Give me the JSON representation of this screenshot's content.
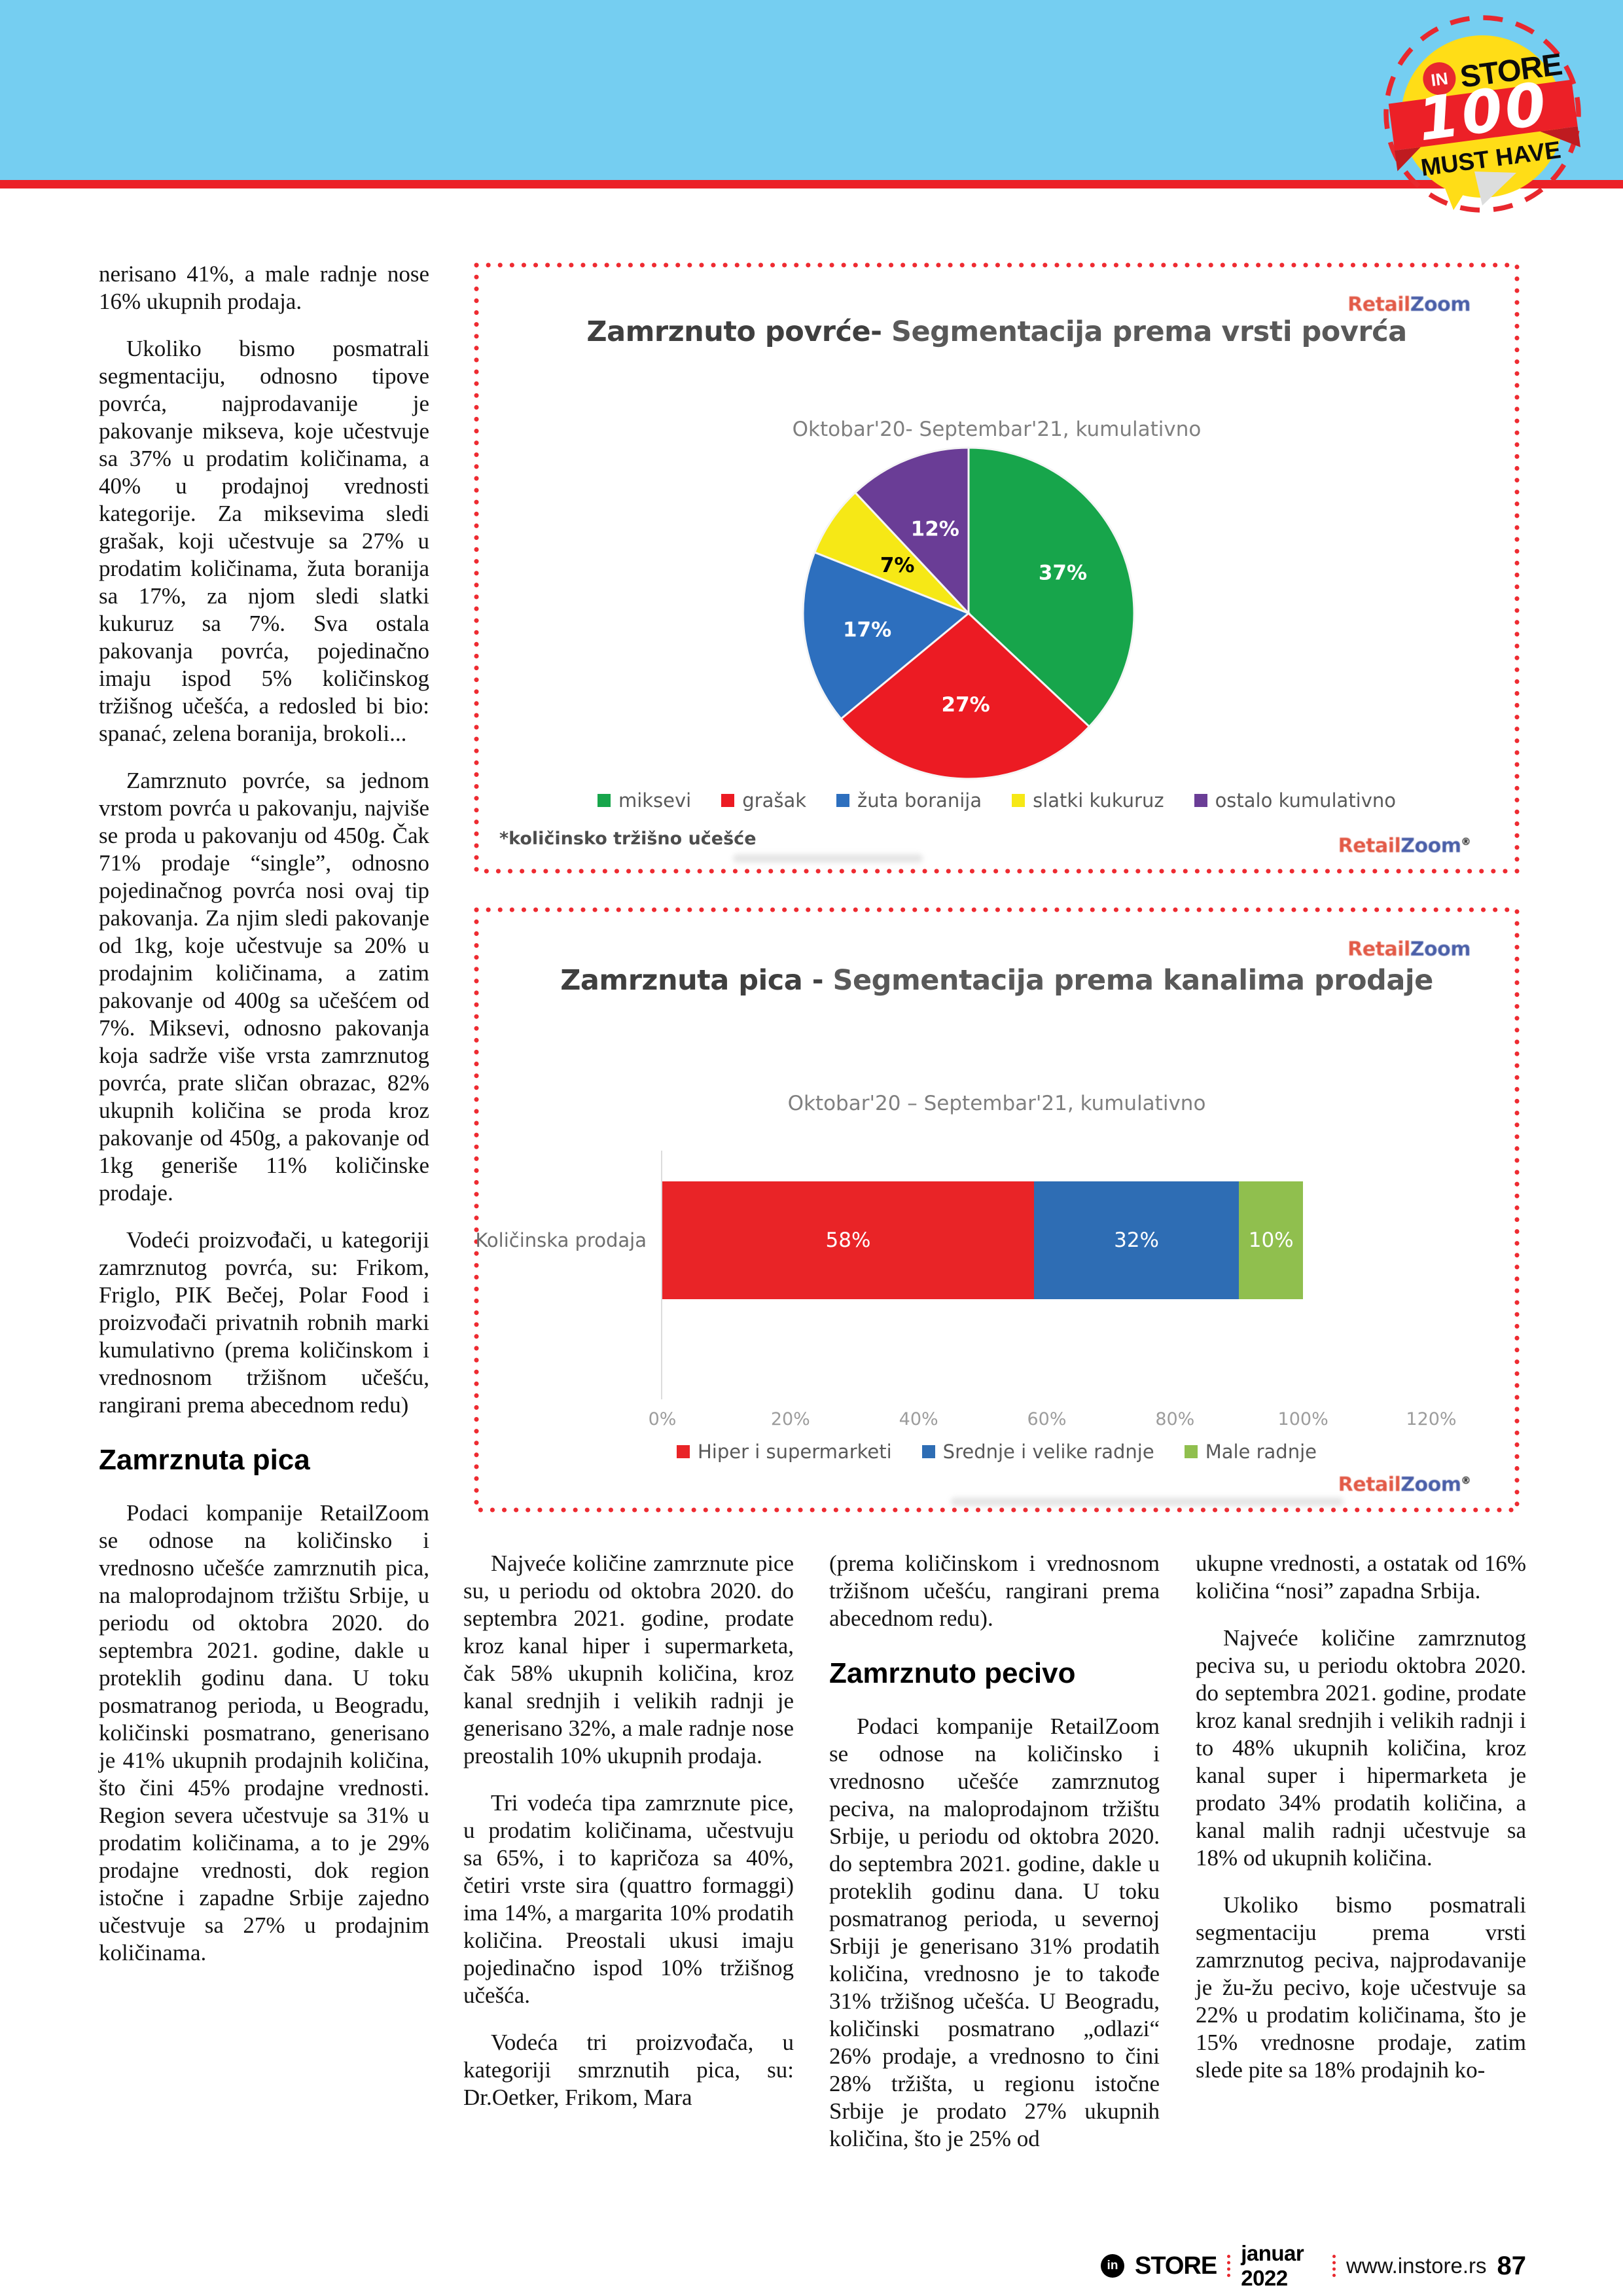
{
  "badge": {
    "in": "IN",
    "top": "STORE",
    "number": "100",
    "bottom": "MUST HAVE",
    "yellow": "#FFDD17",
    "red": "#EC2027",
    "dark_red": "#BF1B20"
  },
  "footer": {
    "logo_in": "in",
    "brand": "STORE",
    "date": "januar 2022",
    "url": "www.instore.rs",
    "page": "87"
  },
  "logo": {
    "red": "Retail",
    "blue": "Zoom",
    "reg": "®"
  },
  "article": {
    "columns": [
      {
        "blocks": [
          {
            "t": "p",
            "ind": false,
            "text": "nerisano 41%, a male radnje nose 16% ukupnih prodaja."
          },
          {
            "t": "p",
            "ind": true,
            "text": "Ukoliko bismo posmatrali segmentaciju, odnosno tipove povrća, najprodavanije je pakovanje mikseva, koje učestvuje sa 37% u prodatim količinama, a 40% u prodajnoj vrednosti kategorije. Za miksevima sledi grašak, koji učestvuje sa 27% u prodatim količinama, žuta boranija sa 17%, za njom sledi slatki kukuruz sa 7%. Sva ostala pakovanja povrća, pojedinačno imaju ispod 5% količinskog tržišnog učešća, a redosled bi bio: spanać, zelena boranija, brokoli..."
          },
          {
            "t": "p",
            "ind": true,
            "text": "Zamrznuto povrće, sa jednom vrstom povrća u pakovanju, najviše se proda u pakovanju od 450g. Čak 71% prodaje “single”, odnosno pojedinačnog povrća nosi ovaj tip pakovanja. Za njim sledi pakovanje od 1kg, koje učestvuje sa 20% u prodajnim količinama, a zatim pakovanje od 400g sa učešćem od 7%. Miksevi, odnosno pakovanja koja sadrže više vrsta zamrznutog povrća, prate sličan obrazac, 82% ukupnih količina se proda kroz pakovanje od 450g, a pakovanje od 1kg generiše 11% količinske prodaje."
          },
          {
            "t": "p",
            "ind": true,
            "text": "Vodeći proizvođači, u kategoriji zamrznutog povrća, su: Frikom, Friglo, PIK Bečej, Polar Food i proizvođači privatnih robnih marki kumulativno (prema količinskom i vrednosnom tržišnom učešću, rangirani prema abecednom redu)"
          },
          {
            "t": "h",
            "text": "Zamrznuta pica"
          },
          {
            "t": "p",
            "ind": true,
            "text": "Podaci kompanije RetailZoom se odnose na količinsko i vrednosno učešće zamrznutih pica, na maloprodajnom tržištu Srbije, u periodu od oktobra 2020. do septembra 2021. godine, dakle u proteklih godinu dana. U toku posmatranog perioda, u Beogradu, količinski posmatrano, generisano je 41% ukupnih prodajnih količina, što čini 45% prodajne vrednosti. Region severa učestvuje sa 31% u prodatim količinama, a to je 29% prodajne vrednosti, dok region istočne i zapadne Srbije zajedno učestvuje sa 27% u prodajnim količinama."
          }
        ]
      },
      {
        "blocks": [
          {
            "t": "p",
            "ind": true,
            "text": "Najveće količine zamrznute pice su, u periodu od oktobra 2020. do septembra 2021. godine, prodate kroz kanal hiper i supermarketa, čak 58% ukupnih količina, kroz kanal srednjih i velikih radnji je generisano 32%, a male radnje nose preostalih 10% ukupnih prodaja."
          },
          {
            "t": "p",
            "ind": true,
            "text": "Tri vodeća tipa zamrznute pice, u prodatim količinama, učestvuju sa 65%, i to kapričoza sa 40%, četiri vrste sira (quattro formaggi) ima 14%, a margarita 10% prodatih količina. Preostali ukusi imaju pojedinačno ispod 10% tržišnog učešća."
          },
          {
            "t": "p",
            "ind": true,
            "text": "Vodeća tri proizvođača, u kategoriji smrznutih pica, su: Dr.Oetker, Frikom, Mara"
          }
        ]
      },
      {
        "blocks": [
          {
            "t": "p",
            "ind": false,
            "text": "(prema količinskom i vrednosnom tržišnom učešću, rangirani prema abecednom redu)."
          },
          {
            "t": "h",
            "text": "Zamrznuto pecivo"
          },
          {
            "t": "p",
            "ind": true,
            "text": "Podaci kompanije RetailZoom se odnose na količinsko i vrednosno učešće zamrznutog peciva, na maloprodajnom tržištu Srbije, u periodu od oktobra 2020. do septembra 2021. godine, dakle u proteklih godinu dana. U toku posmatranog perioda, u severnoj Srbiji je generisano 31% prodatih količina, vrednosno je to takođe 31% tržišnog učešća.  U Beogradu, količinski posmatrano „odlazi“ 26% prodaje, a vrednosno to čini 28% tržišta, u regionu istočne Srbije je prodato 27% ukupnih količina, što je 25% od"
          }
        ]
      },
      {
        "blocks": [
          {
            "t": "p",
            "ind": false,
            "text": "ukupne vrednosti, a ostatak od 16% količina “nosi” zapadna Srbija."
          },
          {
            "t": "p",
            "ind": true,
            "text": "Najveće količine zamrznutog peciva su, u periodu oktobra 2020. do septembra 2021. godine, prodate kroz kanal srednjih i velikih radnji i to 48% ukupnih količina, kroz kanal super i hipermarketa je prodato 34% prodatih količina, a kanal malih radnji učestvuje sa 18% od ukupnih količina."
          },
          {
            "t": "p",
            "ind": true,
            "text": "Ukoliko bismo posmatrali segmentaciju prema vrsti zamrznutog peciva, najprodavanije je žu-žu pecivo, koje učestvuje sa 22% u prodatim količinama, što je 15% vrednosne prodaje, zatim slede pite sa 18% prodajnih ko-"
          }
        ]
      }
    ]
  },
  "chart_data": [
    {
      "type": "pie",
      "title_dark": "Zamrznuto povrće-",
      "title_gray": " Segmentacija prema vrsti povrća",
      "subtitle": "Oktobar'20- Septembar'21, kumulativno",
      "labels": [
        "miksevi",
        "grašak",
        "žuta boranija",
        "slatki kukuruz",
        "ostalo kumulativno"
      ],
      "values": [
        37,
        27,
        17,
        7,
        12
      ],
      "value_labels": [
        "37%",
        "27%",
        "17%",
        "7%",
        "12%"
      ],
      "colors": [
        "#17A54B",
        "#EC1B23",
        "#2D6FBE",
        "#F6E816",
        "#6A3D96"
      ],
      "label_colors": [
        "#ffffff",
        "#ffffff",
        "#ffffff",
        "#000000",
        "#ffffff"
      ],
      "label_radii": [
        0.62,
        0.55,
        0.62,
        0.52,
        0.55
      ],
      "start_angle_deg": -90,
      "direction": "clockwise",
      "legend_position": "bottom",
      "footnote": "*količinsko tržišno učešće"
    },
    {
      "type": "stacked-bar-horizontal",
      "title_dark": "Zamrznuta pica - ",
      "title_gray": "Segmentacija prema kanalima prodaje",
      "subtitle": "Oktobar'20 – Septembar'21, kumulativno",
      "category": "Količinska prodaja",
      "series": [
        {
          "name": "Hiper i supermarketi",
          "value": 58,
          "color": "#E92427"
        },
        {
          "name": "Srednje i velike radnje",
          "value": 32,
          "color": "#2E6DB4"
        },
        {
          "name": "Male radnje",
          "value": 10,
          "color": "#90BF4E"
        }
      ],
      "x_ticks": [
        "0%",
        "20%",
        "40%",
        "60%",
        "80%",
        "100%",
        "120%"
      ],
      "x_max": 120,
      "legend_position": "bottom",
      "grid": false
    }
  ]
}
